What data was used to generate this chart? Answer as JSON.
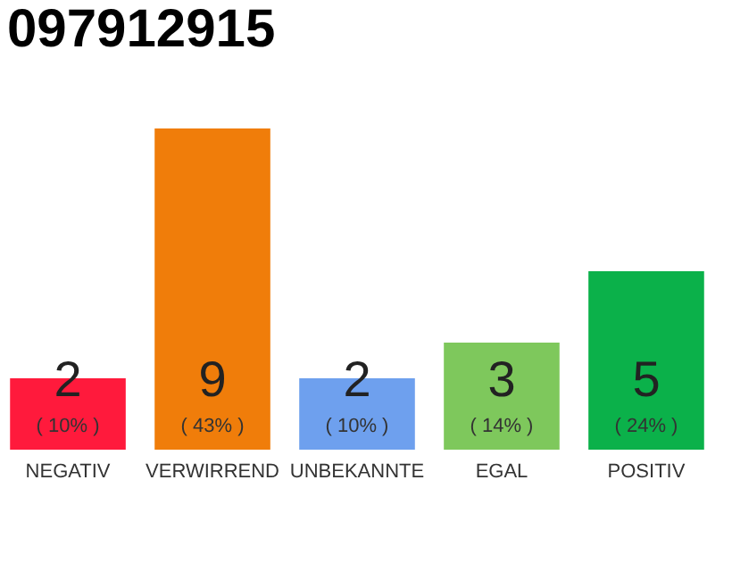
{
  "chart_data": {
    "type": "bar",
    "title": "097912915",
    "categories": [
      "NEGATIV",
      "VERWIRREND",
      "UNBEKANNTE",
      "EGAL",
      "POSITIV"
    ],
    "series": [
      {
        "colors": [
          "#ff1a3c",
          "#f07d0a",
          "#6ea0ee",
          "#7ec85c",
          "#0bb14a"
        ],
        "values": [
          2,
          9,
          2,
          3,
          5
        ]
      }
    ],
    "data_labels": true,
    "annotations": [
      "( 10% )",
      "( 43% )",
      "( 10% )",
      "( 14% )",
      "( 24% )"
    ],
    "tick_labels": "x"
  }
}
